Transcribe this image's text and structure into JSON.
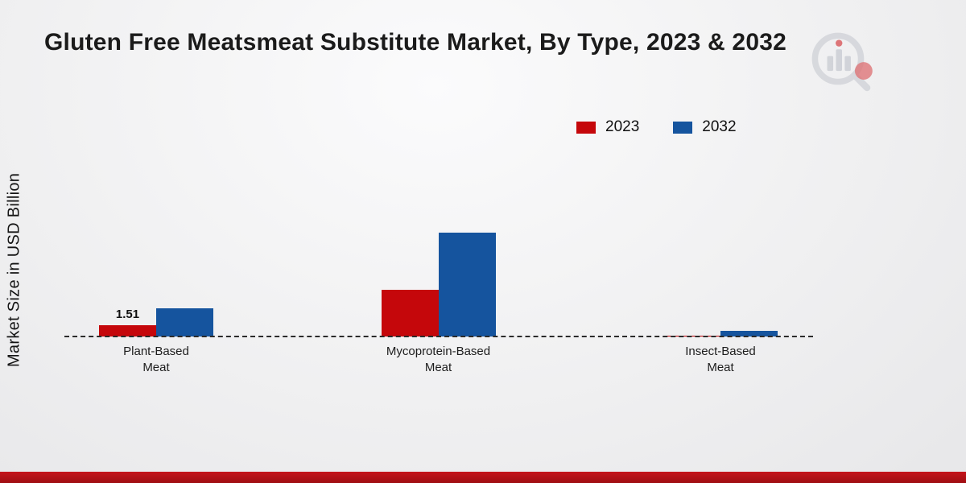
{
  "title": "Gluten Free Meatsmeat Substitute Market, By Type, 2023 & 2032",
  "y_axis_label": "Market Size in USD Billion",
  "colors": {
    "series_2023": "#c5070b",
    "series_2032": "#15549e",
    "footer_accent": "#b0121a",
    "title_text": "#1b1b1b"
  },
  "chart_data": {
    "type": "bar",
    "title": "Gluten Free Meatsmeat Substitute Market, By Type, 2023 & 2032",
    "xlabel": "",
    "ylabel": "Market Size in USD Billion",
    "categories": [
      "Plant-Based Meat",
      "Mycoprotein-Based Meat",
      "Insect-Based Meat"
    ],
    "category_lines": [
      [
        "Plant-Based",
        "Meat"
      ],
      [
        "Mycoprotein-Based",
        "Meat"
      ],
      [
        "Insect-Based",
        "Meat"
      ]
    ],
    "series": [
      {
        "name": "2023",
        "color": "#c5070b",
        "values": [
          1.51,
          6.2,
          0.15
        ],
        "value_labels": [
          "1.51",
          "",
          ""
        ]
      },
      {
        "name": "2032",
        "color": "#15549e",
        "values": [
          3.8,
          13.8,
          0.75
        ],
        "value_labels": [
          "",
          "",
          ""
        ]
      }
    ],
    "ylim": [
      0,
      30
    ],
    "grid": false,
    "legend_position": "top-right",
    "baseline_style": "dashed",
    "axes_visible": false
  }
}
